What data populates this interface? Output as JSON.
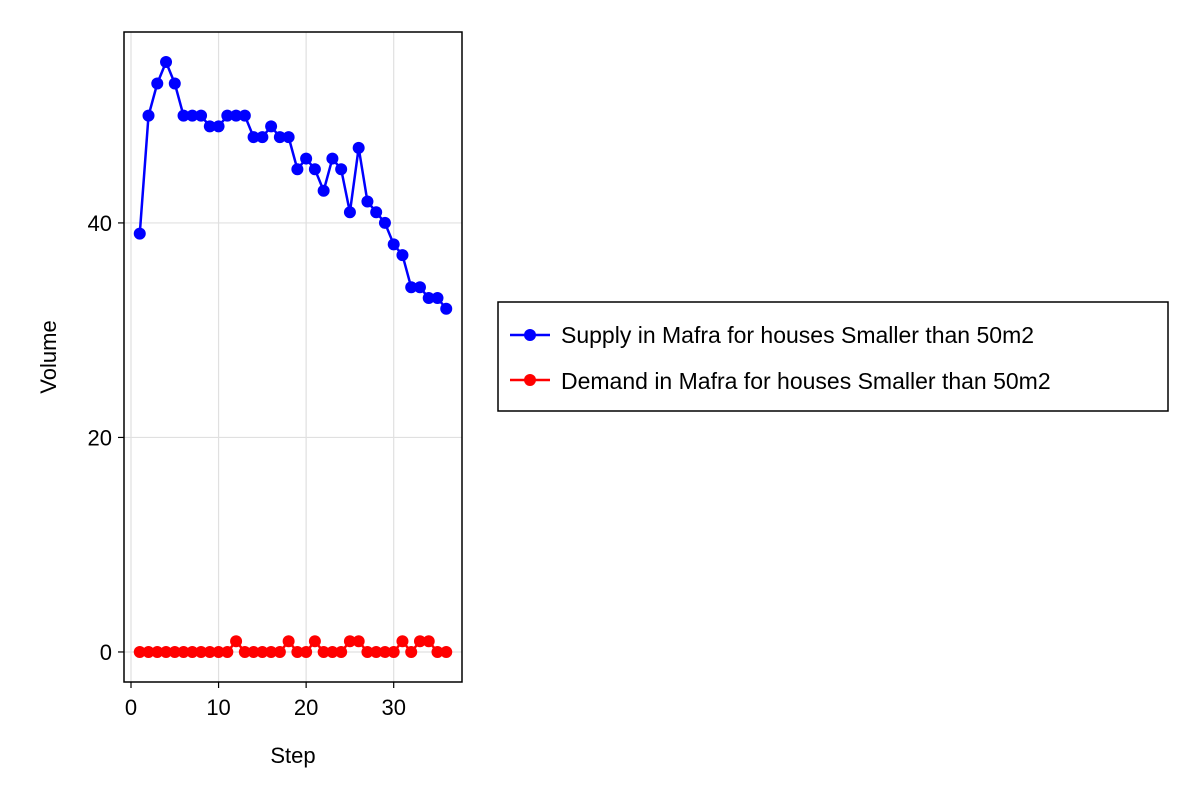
{
  "chart_data": {
    "type": "line",
    "title": "",
    "xlabel": "Step",
    "ylabel": "Volume",
    "xlim": [
      -0.8,
      37.8
    ],
    "ylim": [
      -2.8,
      57.8
    ],
    "xticks": [
      0,
      10,
      20,
      30
    ],
    "yticks": [
      0,
      20,
      40
    ],
    "grid": true,
    "legend_position": "right",
    "x": [
      1,
      2,
      3,
      4,
      5,
      6,
      7,
      8,
      9,
      10,
      11,
      12,
      13,
      14,
      15,
      16,
      17,
      18,
      19,
      20,
      21,
      22,
      23,
      24,
      25,
      26,
      27,
      28,
      29,
      30,
      31,
      32,
      33,
      34,
      35,
      36
    ],
    "series": [
      {
        "name": "Supply in Mafra for houses Smaller than 50m2",
        "color": "#0000ff",
        "values": [
          39,
          50,
          53,
          55,
          53,
          50,
          50,
          50,
          49,
          49,
          50,
          50,
          50,
          48,
          48,
          49,
          48,
          48,
          45,
          46,
          45,
          43,
          46,
          45,
          41,
          47,
          42,
          41,
          40,
          38,
          37,
          34,
          34,
          33,
          33,
          32
        ]
      },
      {
        "name": "Demand in Mafra for houses Smaller than 50m2",
        "color": "#ff0000",
        "values": [
          0,
          0,
          0,
          0,
          0,
          0,
          0,
          0,
          0,
          0,
          0,
          1,
          0,
          0,
          0,
          0,
          0,
          1,
          0,
          0,
          1,
          0,
          0,
          0,
          1,
          1,
          0,
          0,
          0,
          0,
          1,
          0,
          1,
          1,
          0,
          0
        ]
      }
    ]
  }
}
